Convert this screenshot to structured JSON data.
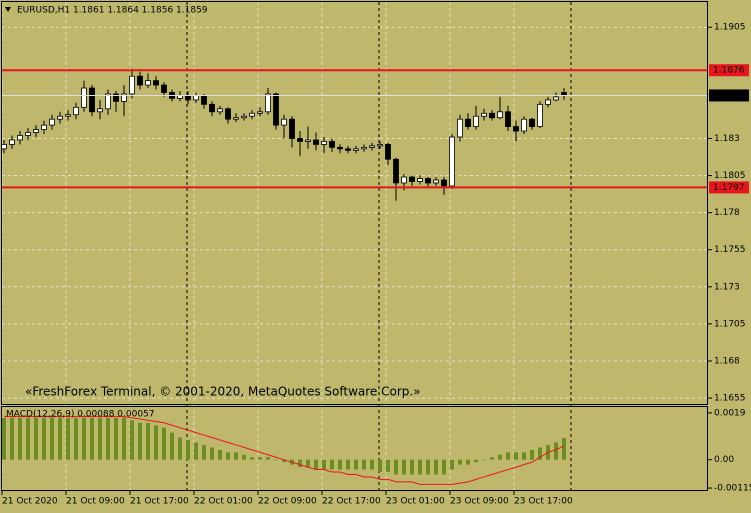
{
  "chart_data": [
    {
      "type": "candlestick",
      "title": "EURUSD,H1  1.1861 1.1864 1.1856 1.1859",
      "watermark": "«FreshForex Terminal, © 2001-2020, MetaQuotes Software Corp.»",
      "categories": [
        "21 Oct 2020",
        null,
        null,
        null,
        null,
        null,
        null,
        null,
        "21 Oct 09:00",
        null,
        null,
        null,
        null,
        null,
        null,
        null,
        "21 Oct 17:00",
        null,
        null,
        null,
        null,
        null,
        null,
        null,
        "22 Oct 01:00",
        null,
        null,
        null,
        null,
        null,
        null,
        null,
        "22 Oct 09:00",
        null,
        null,
        null,
        null,
        null,
        null,
        null,
        "22 Oct 17:00",
        null,
        null,
        null,
        null,
        null,
        null,
        null,
        "23 Oct 01:00",
        null,
        null,
        null,
        null,
        null,
        null,
        null,
        "23 Oct 09:00",
        null,
        null,
        null,
        null,
        null,
        null,
        null,
        "23 Oct 17:00",
        null,
        null,
        null,
        null,
        null,
        null
      ],
      "open": [
        1.1823,
        1.1826,
        1.1829,
        1.1832,
        1.1834,
        1.1836,
        1.1839,
        1.1843,
        1.1845,
        1.1846,
        1.1851,
        1.1864,
        1.1848,
        1.185,
        1.186,
        1.1855,
        1.186,
        1.1872,
        1.1866,
        1.1869,
        1.1866,
        1.1861,
        1.1857,
        1.1859,
        1.1856,
        1.1859,
        1.1853,
        1.1848,
        1.185,
        1.1843,
        1.1844,
        1.1845,
        1.1847,
        1.1848,
        1.186,
        1.1839,
        1.1843,
        1.183,
        1.1828,
        1.1829,
        1.1826,
        1.1828,
        1.1824,
        1.1823,
        1.1822,
        1.1823,
        1.1824,
        1.1825,
        1.1826,
        1.1816,
        1.18,
        1.1804,
        1.1801,
        1.1803,
        1.18,
        1.1802,
        1.1798,
        1.1831,
        1.1843,
        1.1838,
        1.1845,
        1.1847,
        1.1844,
        1.1848,
        1.1838,
        1.1835,
        1.1843,
        1.1838,
        1.1853,
        1.1856,
        1.1861
      ],
      "high": [
        1.1829,
        1.1832,
        1.1835,
        1.1837,
        1.1839,
        1.1842,
        1.1846,
        1.1848,
        1.1849,
        1.1854,
        1.1869,
        1.1866,
        1.1856,
        1.1863,
        1.1862,
        1.1866,
        1.1877,
        1.1875,
        1.1874,
        1.1872,
        1.1868,
        1.1863,
        1.1862,
        1.1862,
        1.1861,
        1.186,
        1.1855,
        1.1852,
        1.1851,
        1.1847,
        1.1847,
        1.1849,
        1.1851,
        1.1864,
        1.1861,
        1.1846,
        1.1845,
        1.1835,
        1.1838,
        1.1834,
        1.1831,
        1.183,
        1.1826,
        1.1825,
        1.1825,
        1.1826,
        1.1827,
        1.1828,
        1.1827,
        1.1817,
        1.1806,
        1.1805,
        1.1805,
        1.1804,
        1.1804,
        1.1804,
        1.1833,
        1.1846,
        1.1847,
        1.1852,
        1.185,
        1.1849,
        1.1858,
        1.1852,
        1.1842,
        1.1845,
        1.1844,
        1.1855,
        1.1858,
        1.1861,
        1.1864
      ],
      "low": [
        1.182,
        1.1823,
        1.1826,
        1.1829,
        1.1831,
        1.1833,
        1.1836,
        1.184,
        1.1842,
        1.1843,
        1.1848,
        1.1845,
        1.1843,
        1.1846,
        1.1848,
        1.1845,
        1.1857,
        1.1863,
        1.1864,
        1.1863,
        1.1858,
        1.1855,
        1.1855,
        1.1853,
        1.1854,
        1.185,
        1.1845,
        1.1846,
        1.184,
        1.1841,
        1.1842,
        1.1843,
        1.1845,
        1.1846,
        1.1836,
        1.183,
        1.1824,
        1.1818,
        1.1823,
        1.1822,
        1.182,
        1.1821,
        1.182,
        1.182,
        1.182,
        1.1821,
        1.1822,
        1.1823,
        1.1812,
        1.1788,
        1.1795,
        1.1798,
        1.1799,
        1.1797,
        1.1798,
        1.1792,
        1.1796,
        1.1828,
        1.1836,
        1.1836,
        1.1842,
        1.1842,
        1.1843,
        1.1835,
        1.1828,
        1.1833,
        1.1836,
        1.1837,
        1.1851,
        1.1855,
        1.1856
      ],
      "close": [
        1.1826,
        1.1829,
        1.1832,
        1.1834,
        1.1836,
        1.1839,
        1.1843,
        1.1845,
        1.1846,
        1.1851,
        1.1864,
        1.1848,
        1.185,
        1.186,
        1.1855,
        1.186,
        1.1872,
        1.1866,
        1.1869,
        1.1866,
        1.1861,
        1.1857,
        1.1859,
        1.1856,
        1.1859,
        1.1853,
        1.1848,
        1.185,
        1.1843,
        1.1844,
        1.1845,
        1.1847,
        1.1848,
        1.186,
        1.1839,
        1.1843,
        1.183,
        1.1828,
        1.1829,
        1.1826,
        1.1828,
        1.1824,
        1.1823,
        1.1822,
        1.1823,
        1.1824,
        1.1825,
        1.1826,
        1.1816,
        1.18,
        1.1804,
        1.1801,
        1.1803,
        1.18,
        1.1802,
        1.1798,
        1.1831,
        1.1843,
        1.1838,
        1.1845,
        1.1847,
        1.1844,
        1.1848,
        1.1838,
        1.1835,
        1.1843,
        1.1838,
        1.1853,
        1.1856,
        1.1858,
        1.1859
      ],
      "levels": [
        {
          "value": 1.1876,
          "color": "#e8141e"
        },
        {
          "value": 1.1797,
          "color": "#e8141e"
        }
      ],
      "bid": 1.1859,
      "ylim": [
        1.1651,
        1.1922
      ],
      "yticks": [
        1.1905,
        1.183,
        1.1805,
        1.178,
        1.1755,
        1.173,
        1.1705,
        1.168,
        1.1655
      ],
      "grid": true
    },
    {
      "type": "macd",
      "title": "MACD(12,26,9) 0.00088 0.00057",
      "series": [
        {
          "color": "#6b8e23",
          "values": [
            0.0017,
            0.0017,
            0.0017,
            0.0017,
            0.0017,
            0.0017,
            0.0017,
            0.0017,
            0.0017,
            0.0017,
            0.0017,
            0.0017,
            0.0017,
            0.0017,
            0.0017,
            0.0017,
            0.0016,
            0.0015,
            0.0015,
            0.0014,
            0.0013,
            0.0011,
            0.0009,
            0.0008,
            0.0007,
            0.0006,
            0.0005,
            0.0004,
            0.0003,
            0.0003,
            0.0002,
            0.0001,
            0.0001,
            0.0001,
            0,
            -0.0001,
            -0.0002,
            -0.0003,
            -0.0003,
            -0.0004,
            -0.0004,
            -0.0004,
            -0.0004,
            -0.0004,
            -0.0004,
            -0.0004,
            -0.0004,
            -0.0005,
            -0.0005,
            -0.0006,
            -0.0006,
            -0.0006,
            -0.0006,
            -0.0006,
            -0.0006,
            -0.0006,
            -0.0004,
            -0.0002,
            -0.0002,
            -0.0001,
            0,
            0.0001,
            0.0002,
            0.0003,
            0.0003,
            0.0003,
            0.0004,
            0.0005,
            0.0006,
            0.0007,
            0.00088
          ]
        },
        {
          "color": "#e8141e",
          "values": [
            0.00175,
            0.00175,
            0.00175,
            0.00175,
            0.00175,
            0.00175,
            0.00175,
            0.00175,
            0.00175,
            0.00175,
            0.00175,
            0.00175,
            0.00175,
            0.00175,
            0.00175,
            0.00175,
            0.0017,
            0.00165,
            0.0016,
            0.00155,
            0.0015,
            0.0014,
            0.0013,
            0.0012,
            0.0011,
            0.001,
            0.0009,
            0.0008,
            0.0007,
            0.0006,
            0.0005,
            0.0004,
            0.0003,
            0.0002,
            0.0001,
            0,
            -0.0001,
            -0.0002,
            -0.0003,
            -0.0004,
            -0.0004,
            -0.0005,
            -0.0005,
            -0.0006,
            -0.0006,
            -0.0007,
            -0.0007,
            -0.0008,
            -0.0008,
            -0.0009,
            -0.0009,
            -0.0009,
            -0.001,
            -0.001,
            -0.001,
            -0.001,
            -0.001,
            -0.00095,
            -0.0009,
            -0.0008,
            -0.0007,
            -0.0006,
            -0.0005,
            -0.0004,
            -0.0003,
            -0.0002,
            -0.0001,
            0.0001,
            0.0003,
            0.0004,
            0.00057
          ]
        }
      ],
      "ylim": [
        -0.00123,
        0.00214
      ],
      "yticks": [
        0.0019,
        {
          "value": 0,
          "label": "0.00"
        },
        -0.00115
      ]
    }
  ]
}
